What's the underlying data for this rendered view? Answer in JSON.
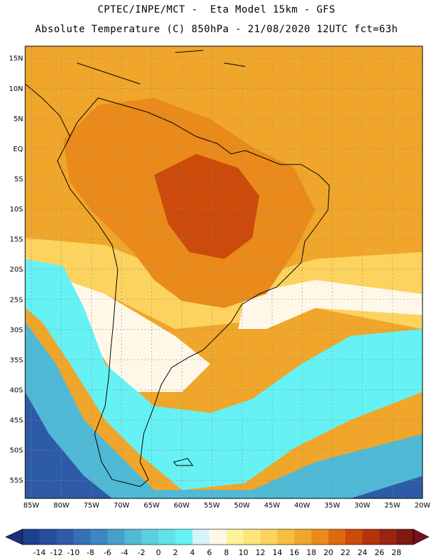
{
  "header": {
    "line1": "CPTEC/INPE/MCT -  Eta Model 15km - GFS",
    "line2": "Absolute Temperature (C) 850hPa - 21/08/2020 12UTC fct=63h"
  },
  "axes": {
    "lat_labels": [
      "15N",
      "10N",
      "5N",
      "EQ",
      "5S",
      "10S",
      "15S",
      "20S",
      "25S",
      "30S",
      "35S",
      "40S",
      "45S",
      "50S",
      "55S"
    ],
    "lat_values": [
      15,
      10,
      5,
      0,
      -5,
      -10,
      -15,
      -20,
      -25,
      -30,
      -35,
      -40,
      -45,
      -50,
      -55
    ],
    "lon_labels": [
      "85W",
      "80W",
      "75W",
      "70W",
      "65W",
      "60W",
      "55W",
      "50W",
      "45W",
      "40W",
      "35W",
      "30W",
      "25W",
      "20W"
    ],
    "lon_values": [
      -85,
      -80,
      -75,
      -70,
      -65,
      -60,
      -55,
      -50,
      -45,
      -40,
      -35,
      -30,
      -25,
      -20
    ],
    "lon_range": [
      -86,
      -20
    ],
    "lat_range": [
      -58,
      17
    ]
  },
  "colorbar": {
    "labels": [
      "-14",
      "-12",
      "-10",
      "-8",
      "-6",
      "-4",
      "-2",
      "0",
      "2",
      "4",
      "6",
      "8",
      "10",
      "12",
      "14",
      "16",
      "18",
      "20",
      "22",
      "24",
      "26",
      "28"
    ],
    "colors": [
      "#1f3f8f",
      "#264c9c",
      "#2d5ba8",
      "#3570b4",
      "#3d87c0",
      "#46a0cb",
      "#4fb9d6",
      "#58d0df",
      "#5fe3ea",
      "#66f2f4",
      "#d5f5fb",
      "#fff8e8",
      "#fff39a",
      "#fee57a",
      "#fcd35e",
      "#f6bd3f",
      "#f0a62a",
      "#e98a1a",
      "#de6a0f",
      "#cc4a0a",
      "#b33408",
      "#9a2410",
      "#7d1a12"
    ],
    "under_color": "#1a2f7a",
    "over_color": "#7a0f1f"
  },
  "map_fields": {
    "ocean_north": "#f0a62a",
    "land_tropics": "#e98a1a",
    "land_hot_core": "#cc4a0a",
    "subtropics": "#fcd35e",
    "mid_lat_pale": "#fff8e8",
    "cold_tongue": "#66f2f4",
    "cold_ocean": "#4fb9d6",
    "deep_south": "#2d5ba8"
  }
}
